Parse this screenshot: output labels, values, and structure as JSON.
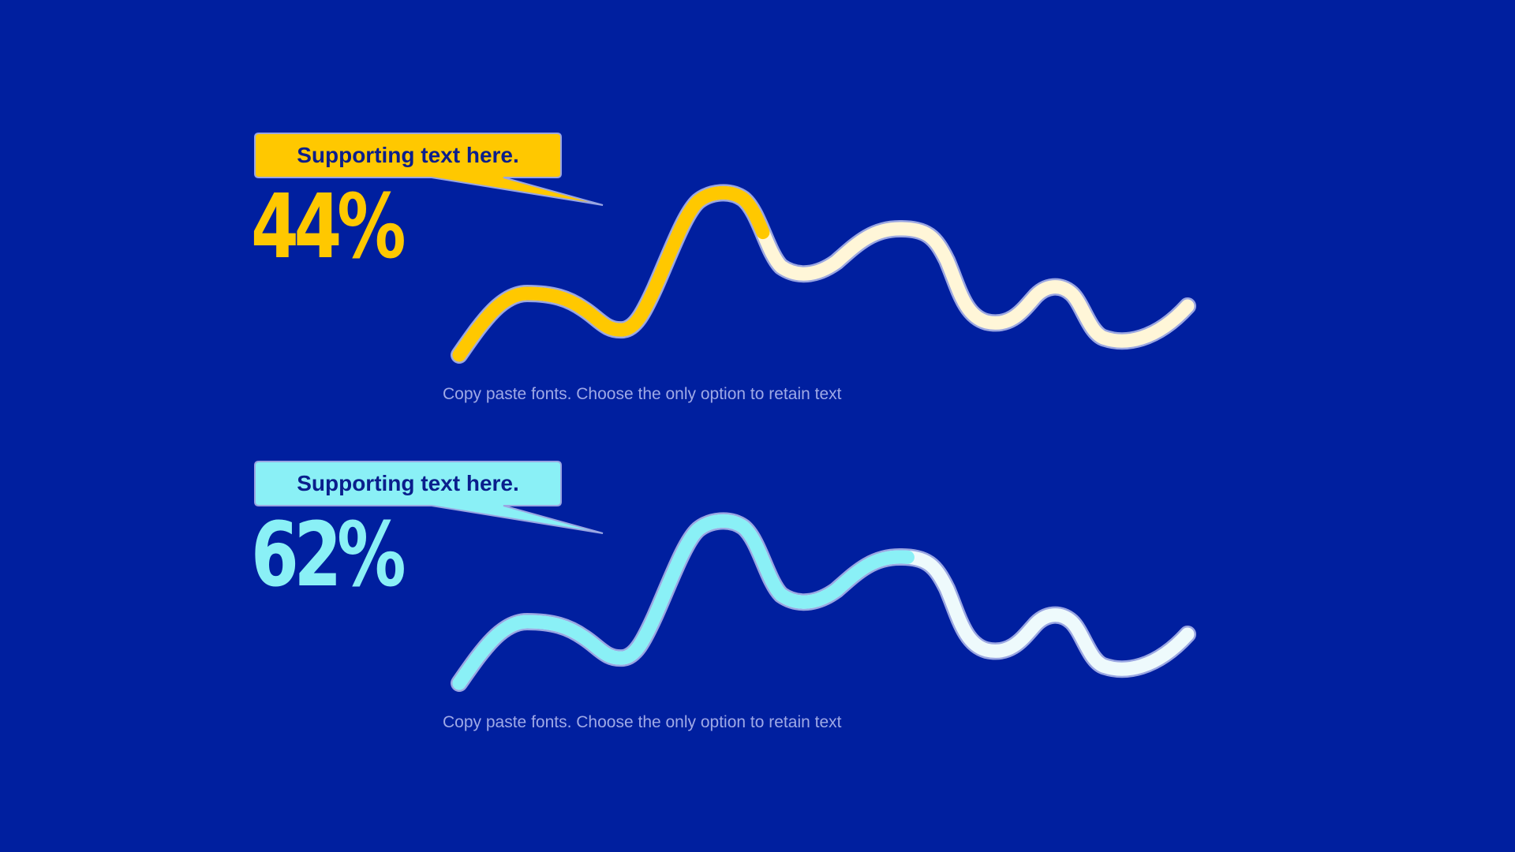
{
  "colors": {
    "background": "#001F9F",
    "yellow": "#FFC800",
    "yellow_light": "#FFF6D8",
    "cyan": "#8AF0F6",
    "cyan_light": "#EEFAFC",
    "outline": "#9AA6E2"
  },
  "chart_data": [
    {
      "type": "progress",
      "label": "Supporting text here.",
      "value": 44,
      "value_text": "44%",
      "caption": "Copy paste fonts. Choose the only option to retain text",
      "fill_color": "#FFC800",
      "rest_color": "#FFF6D8"
    },
    {
      "type": "progress",
      "label": "Supporting text here.",
      "value": 62,
      "value_text": "62%",
      "caption": "Copy paste fonts. Choose the only option to retain text",
      "fill_color": "#8AF0F6",
      "rest_color": "#EEFAFC"
    }
  ]
}
